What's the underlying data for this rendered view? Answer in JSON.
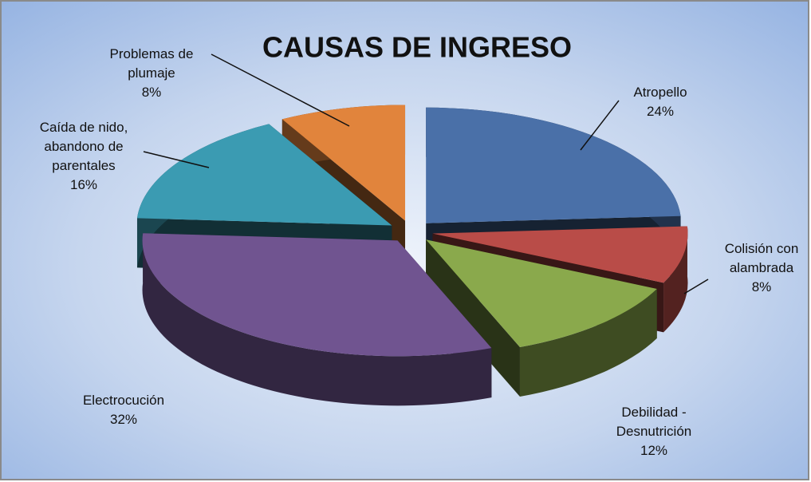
{
  "chart_data": {
    "type": "pie",
    "title": "CAUSAS DE INGRESO",
    "categories": [
      "Atropello",
      "Colisión con alambrada",
      "Debilidad - Desnutrición",
      "Electrocución",
      "Caída de nido, abandono de parentales",
      "Problemas de plumaje"
    ],
    "values": [
      24,
      8,
      12,
      32,
      16,
      8
    ],
    "value_labels": [
      "24%",
      "8%",
      "12%",
      "32%",
      "16%",
      "8%"
    ],
    "colors": [
      "#4a70a8",
      "#b94c48",
      "#8aa94c",
      "#705490",
      "#3b9bb2",
      "#e1843c"
    ]
  }
}
